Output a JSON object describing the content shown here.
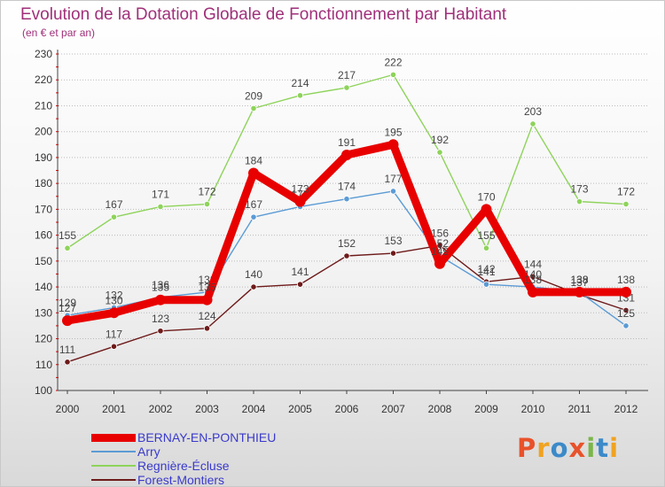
{
  "title": "Evolution de la Dotation Globale de Fonctionnement par Habitant",
  "subtitle": "(en € et par an)",
  "logo": {
    "text": "Proxiti",
    "colors": [
      "#e8522b",
      "#f0a321",
      "#3c8ac9",
      "#e8522b",
      "#7ab648",
      "#3c8ac9",
      "#f0a321"
    ]
  },
  "chart_data": {
    "type": "line",
    "title": "Evolution de la Dotation Globale de Fonctionnement par Habitant",
    "subtitle": "(en € et par an)",
    "xlabel": "",
    "ylabel": "",
    "x": [
      "2000",
      "2001",
      "2002",
      "2003",
      "2004",
      "2005",
      "2006",
      "2007",
      "2008",
      "2009",
      "2010",
      "2011",
      "2012"
    ],
    "ylim": [
      100,
      230
    ],
    "yticks": [
      100,
      110,
      120,
      130,
      140,
      150,
      160,
      170,
      180,
      190,
      200,
      210,
      220,
      230
    ],
    "grid": "horizontal-dotted",
    "legend": "bottom-left",
    "series": [
      {
        "name": "Regnière-Écluse",
        "color": "#8ed35a",
        "values": [
          155,
          167,
          171,
          172,
          209,
          214,
          217,
          222,
          192,
          155,
          203,
          173,
          172
        ]
      },
      {
        "name": "Forest-Montiers",
        "color": "#6e1a1a",
        "values": [
          111,
          117,
          123,
          124,
          140,
          141,
          152,
          153,
          156,
          142,
          144,
          137,
          131
        ]
      },
      {
        "name": "Arry",
        "color": "#5b9bd5",
        "values": [
          129,
          132,
          136,
          138,
          167,
          171,
          174,
          177,
          152,
          141,
          140,
          138,
          125
        ]
      },
      {
        "name": "BERNAY-EN-PONTHIEU",
        "color": "#e80000",
        "values": [
          127,
          130,
          135,
          135,
          184,
          173,
          191,
          195,
          149,
          170,
          138,
          138,
          138
        ]
      }
    ]
  }
}
